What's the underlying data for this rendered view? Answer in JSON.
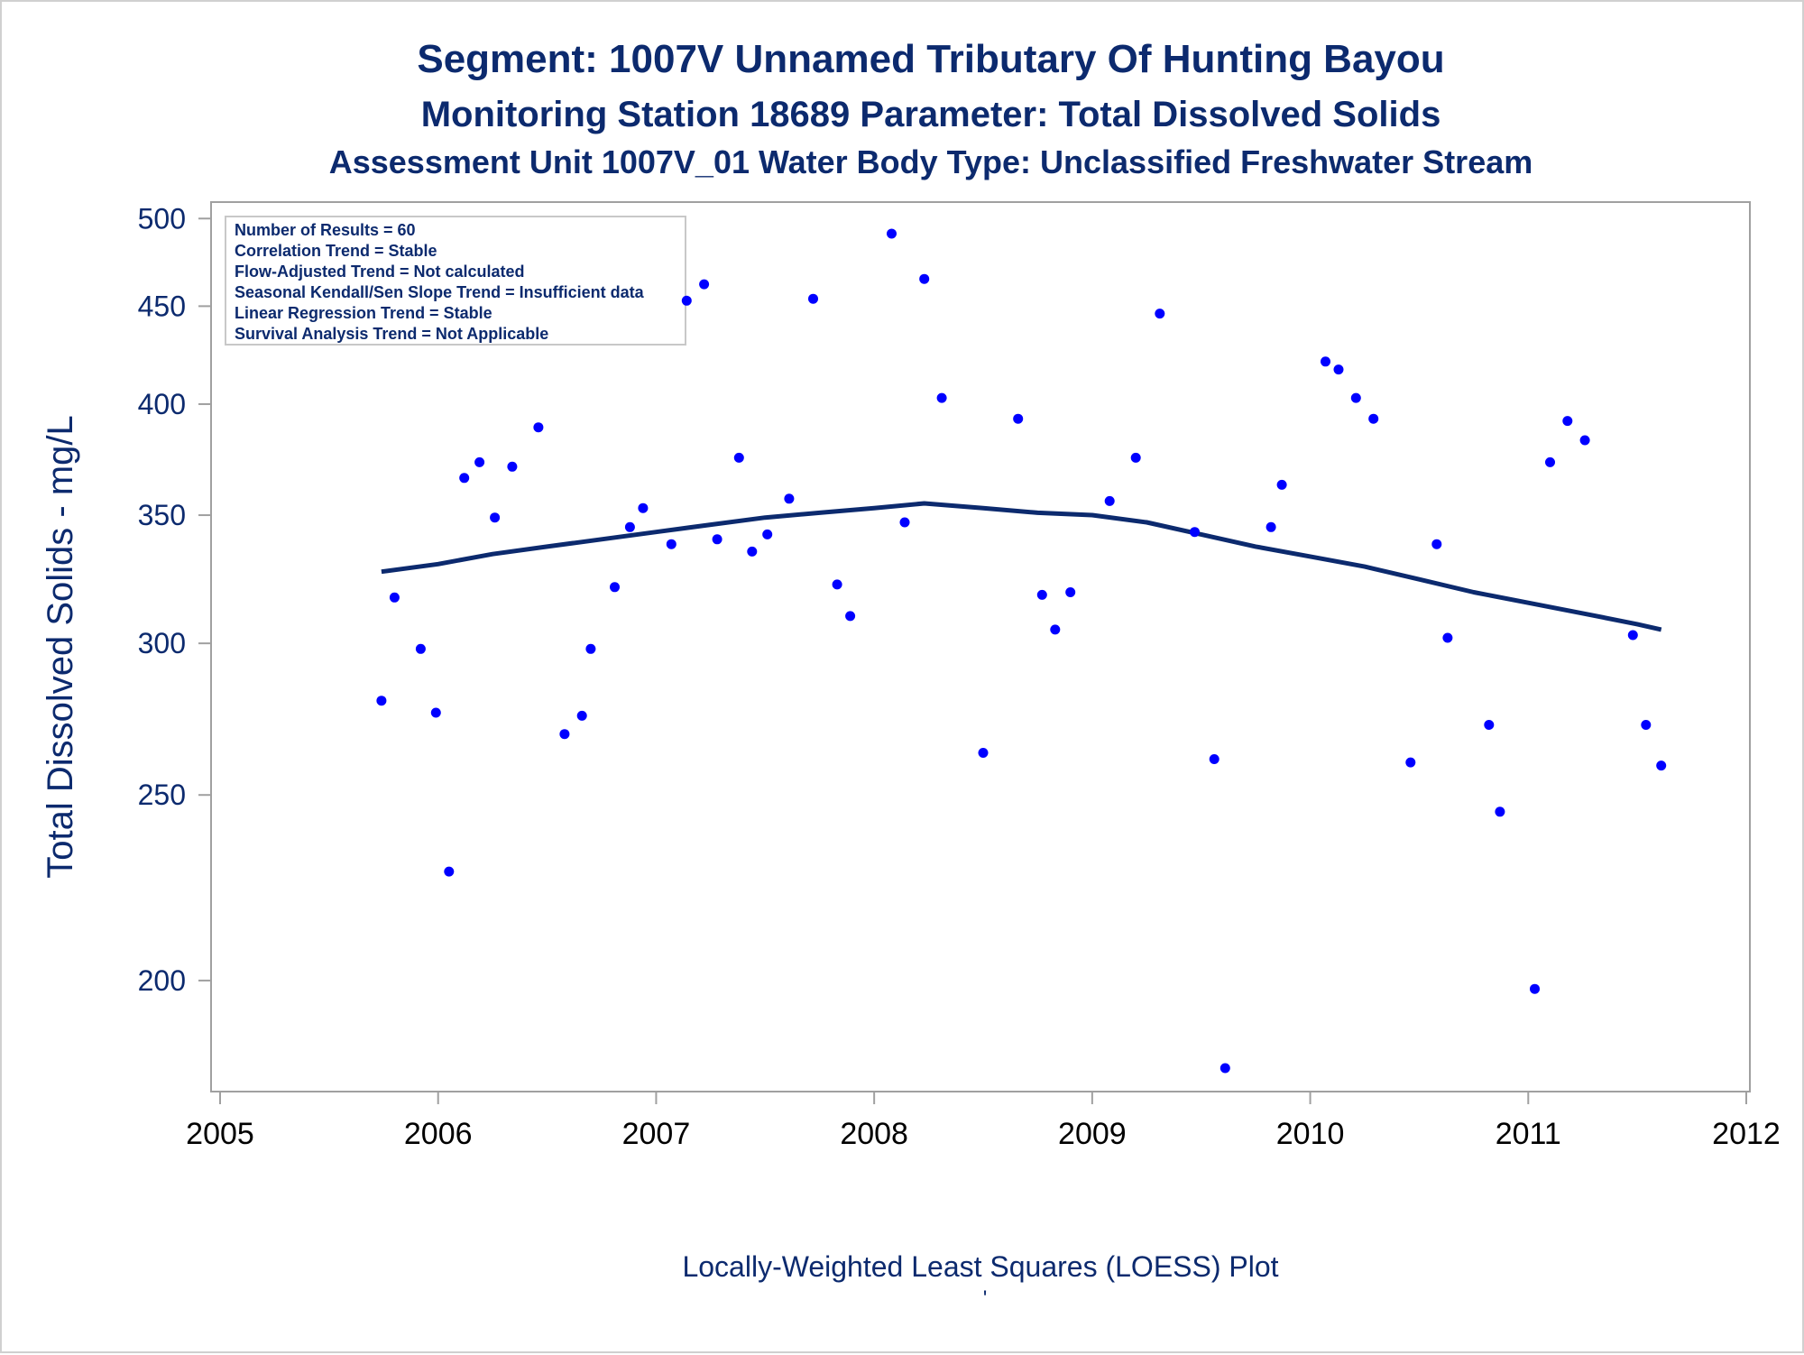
{
  "colors": {
    "title": "#0c2a6e",
    "axis_text": "#0c2a6e",
    "point": "#0000ff",
    "loess_line": "#0c2a6e",
    "frame": "#a0a0a0",
    "background": "#ffffff"
  },
  "titles": {
    "line1": "Segment: 1007V  Unnamed Tributary Of Hunting Bayou",
    "line2": "Monitoring Station 18689 Parameter: Total Dissolved Solids",
    "line3": "Assessment Unit 1007V_01   Water Body Type: Unclassified Freshwater Stream"
  },
  "footnote": "Locally-Weighted Least Squares (LOESS) Plot",
  "footnote_mark": "'",
  "stats_box": [
    "Number of Results = 60",
    "Correlation Trend = Stable",
    "Flow-Adjusted Trend = Not calculated",
    "Seasonal Kendall/Sen Slope Trend = Insufficient data",
    "Linear Regression Trend = Stable",
    "Survival Analysis Trend = Not Applicable"
  ],
  "chart_data": {
    "type": "scatter",
    "title": "Segment: 1007V  Unnamed Tributary Of Hunting Bayou",
    "subtitle": "Monitoring Station 18689 Parameter: Total Dissolved Solids",
    "ylabel": "Total Dissolved Solids - mg/L",
    "xlabel": "",
    "x_ticks": [
      "2005",
      "2006",
      "2007",
      "2008",
      "2009",
      "2010",
      "2011",
      "2012"
    ],
    "y_ticks": [
      "200",
      "250",
      "300",
      "350",
      "400",
      "450",
      "500"
    ],
    "xlim": [
      2005,
      2012
    ],
    "ylim": [
      175,
      510
    ],
    "y_scale": "log",
    "grid": false,
    "series": [
      {
        "type": "scatter",
        "points": [
          [
            2005.74,
            280
          ],
          [
            2005.8,
            317
          ],
          [
            2005.92,
            298
          ],
          [
            2005.99,
            276
          ],
          [
            2006.05,
            228
          ],
          [
            2006.12,
            366
          ],
          [
            2006.19,
            373
          ],
          [
            2006.26,
            349
          ],
          [
            2006.34,
            371
          ],
          [
            2006.46,
            389
          ],
          [
            2006.58,
            269
          ],
          [
            2006.66,
            275
          ],
          [
            2006.7,
            298
          ],
          [
            2006.81,
            321
          ],
          [
            2006.88,
            345
          ],
          [
            2006.94,
            353
          ],
          [
            2007.07,
            338
          ],
          [
            2007.14,
            453
          ],
          [
            2007.22,
            462
          ],
          [
            2007.28,
            340
          ],
          [
            2007.38,
            375
          ],
          [
            2007.44,
            335
          ],
          [
            2007.51,
            342
          ],
          [
            2007.61,
            357
          ],
          [
            2007.72,
            454
          ],
          [
            2007.83,
            322
          ],
          [
            2007.89,
            310
          ],
          [
            2008.08,
            491
          ],
          [
            2008.14,
            347
          ],
          [
            2008.23,
            465
          ],
          [
            2008.31,
            403
          ],
          [
            2008.5,
            263
          ],
          [
            2008.66,
            393
          ],
          [
            2008.77,
            318
          ],
          [
            2008.83,
            305
          ],
          [
            2008.9,
            319
          ],
          [
            2009.08,
            356
          ],
          [
            2009.2,
            375
          ],
          [
            2009.31,
            446
          ],
          [
            2009.47,
            343
          ],
          [
            2009.56,
            261
          ],
          [
            2009.61,
            180
          ],
          [
            2009.82,
            345
          ],
          [
            2009.87,
            363
          ],
          [
            2010.07,
            421
          ],
          [
            2010.13,
            417
          ],
          [
            2010.21,
            403
          ],
          [
            2010.29,
            393
          ],
          [
            2010.46,
            260
          ],
          [
            2010.58,
            338
          ],
          [
            2010.63,
            302
          ],
          [
            2010.82,
            272
          ],
          [
            2010.87,
            245
          ],
          [
            2011.03,
            198
          ],
          [
            2011.1,
            373
          ],
          [
            2011.18,
            392
          ],
          [
            2011.26,
            383
          ],
          [
            2011.48,
            303
          ],
          [
            2011.54,
            272
          ],
          [
            2011.61,
            259
          ]
        ]
      },
      {
        "type": "line",
        "points": [
          [
            2005.74,
            327
          ],
          [
            2006.0,
            330
          ],
          [
            2006.25,
            334
          ],
          [
            2006.5,
            337
          ],
          [
            2006.75,
            340
          ],
          [
            2007.0,
            343
          ],
          [
            2007.25,
            346
          ],
          [
            2007.5,
            349
          ],
          [
            2007.75,
            351
          ],
          [
            2008.0,
            353
          ],
          [
            2008.23,
            355
          ],
          [
            2008.5,
            353
          ],
          [
            2008.75,
            351
          ],
          [
            2009.0,
            350
          ],
          [
            2009.25,
            347
          ],
          [
            2009.5,
            342
          ],
          [
            2009.75,
            337
          ],
          [
            2010.0,
            333
          ],
          [
            2010.25,
            329
          ],
          [
            2010.5,
            324
          ],
          [
            2010.75,
            319
          ],
          [
            2011.0,
            315
          ],
          [
            2011.25,
            311
          ],
          [
            2011.5,
            307
          ],
          [
            2011.61,
            305
          ]
        ]
      }
    ]
  }
}
